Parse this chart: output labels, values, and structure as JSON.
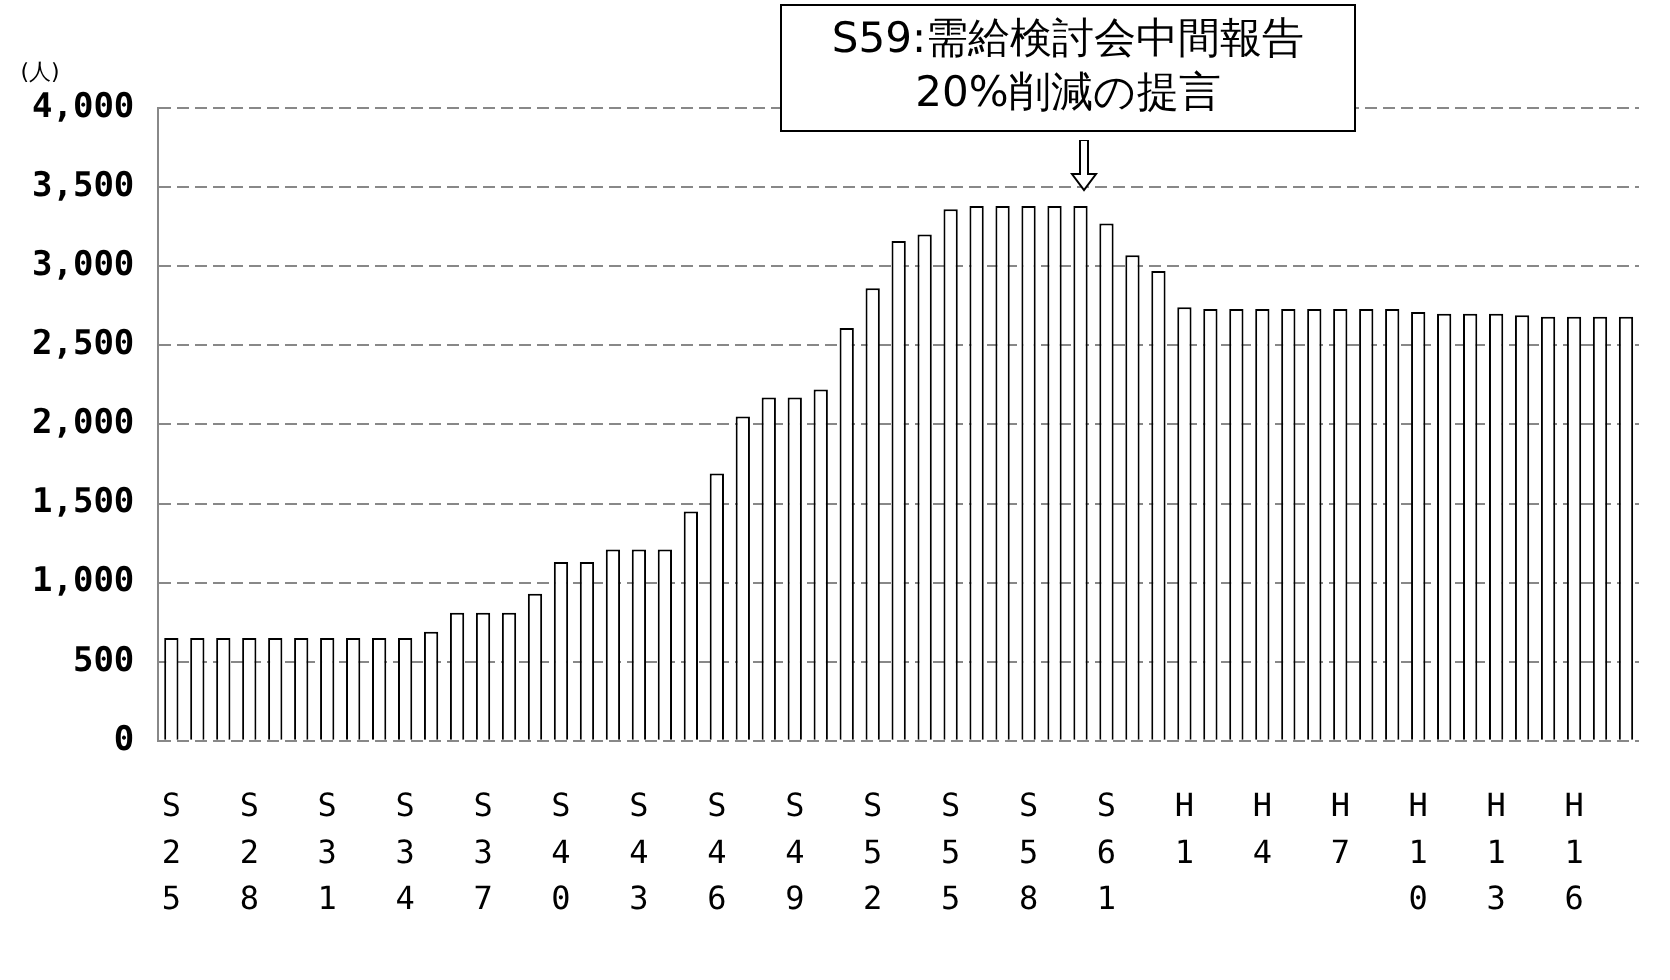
{
  "chart_data": {
    "type": "bar",
    "ylabel": "(人)",
    "categories": [
      "S25",
      null,
      null,
      "S28",
      null,
      null,
      "S31",
      null,
      null,
      "S34",
      null,
      null,
      "S37",
      null,
      null,
      "S40",
      null,
      null,
      "S43",
      null,
      null,
      "S46",
      null,
      null,
      "S49",
      null,
      null,
      "S52",
      null,
      null,
      "S55",
      null,
      null,
      "S58",
      null,
      null,
      "S61",
      null,
      null,
      "H1",
      null,
      null,
      "H4",
      null,
      null,
      "H7",
      null,
      null,
      "H10",
      null,
      null,
      "H13",
      null,
      null,
      "H16",
      null,
      null
    ],
    "values": [
      650,
      650,
      650,
      650,
      650,
      650,
      650,
      650,
      650,
      650,
      690,
      810,
      810,
      810,
      930,
      1130,
      1130,
      1210,
      1210,
      1210,
      1450,
      1690,
      2050,
      2170,
      2170,
      2220,
      2610,
      2860,
      3160,
      3200,
      3360,
      3380,
      3380,
      3380,
      3380,
      3380,
      3270,
      3070,
      2970,
      2740,
      2730,
      2730,
      2730,
      2730,
      2730,
      2730,
      2730,
      2730,
      2710,
      2700,
      2700,
      2700,
      2690,
      2680,
      2680,
      2680,
      2680
    ],
    "color": "#ffffff",
    "ylim": [
      0,
      4000
    ],
    "yticks": [
      0,
      500,
      {
        "value": 1000,
        "label": "1,000"
      },
      {
        "value": 1500,
        "label": "1,500"
      },
      {
        "value": 2000,
        "label": "2,000"
      },
      {
        "value": 2500,
        "label": "2,500"
      },
      {
        "value": 3000,
        "label": "3,000"
      },
      {
        "value": 3500,
        "label": "3,500"
      },
      {
        "value": 4000,
        "label": "4,000"
      }
    ],
    "grid": "y",
    "legend": false,
    "annotations": [
      "S59:需給検討会中間報告\n20%削減の提言"
    ]
  }
}
